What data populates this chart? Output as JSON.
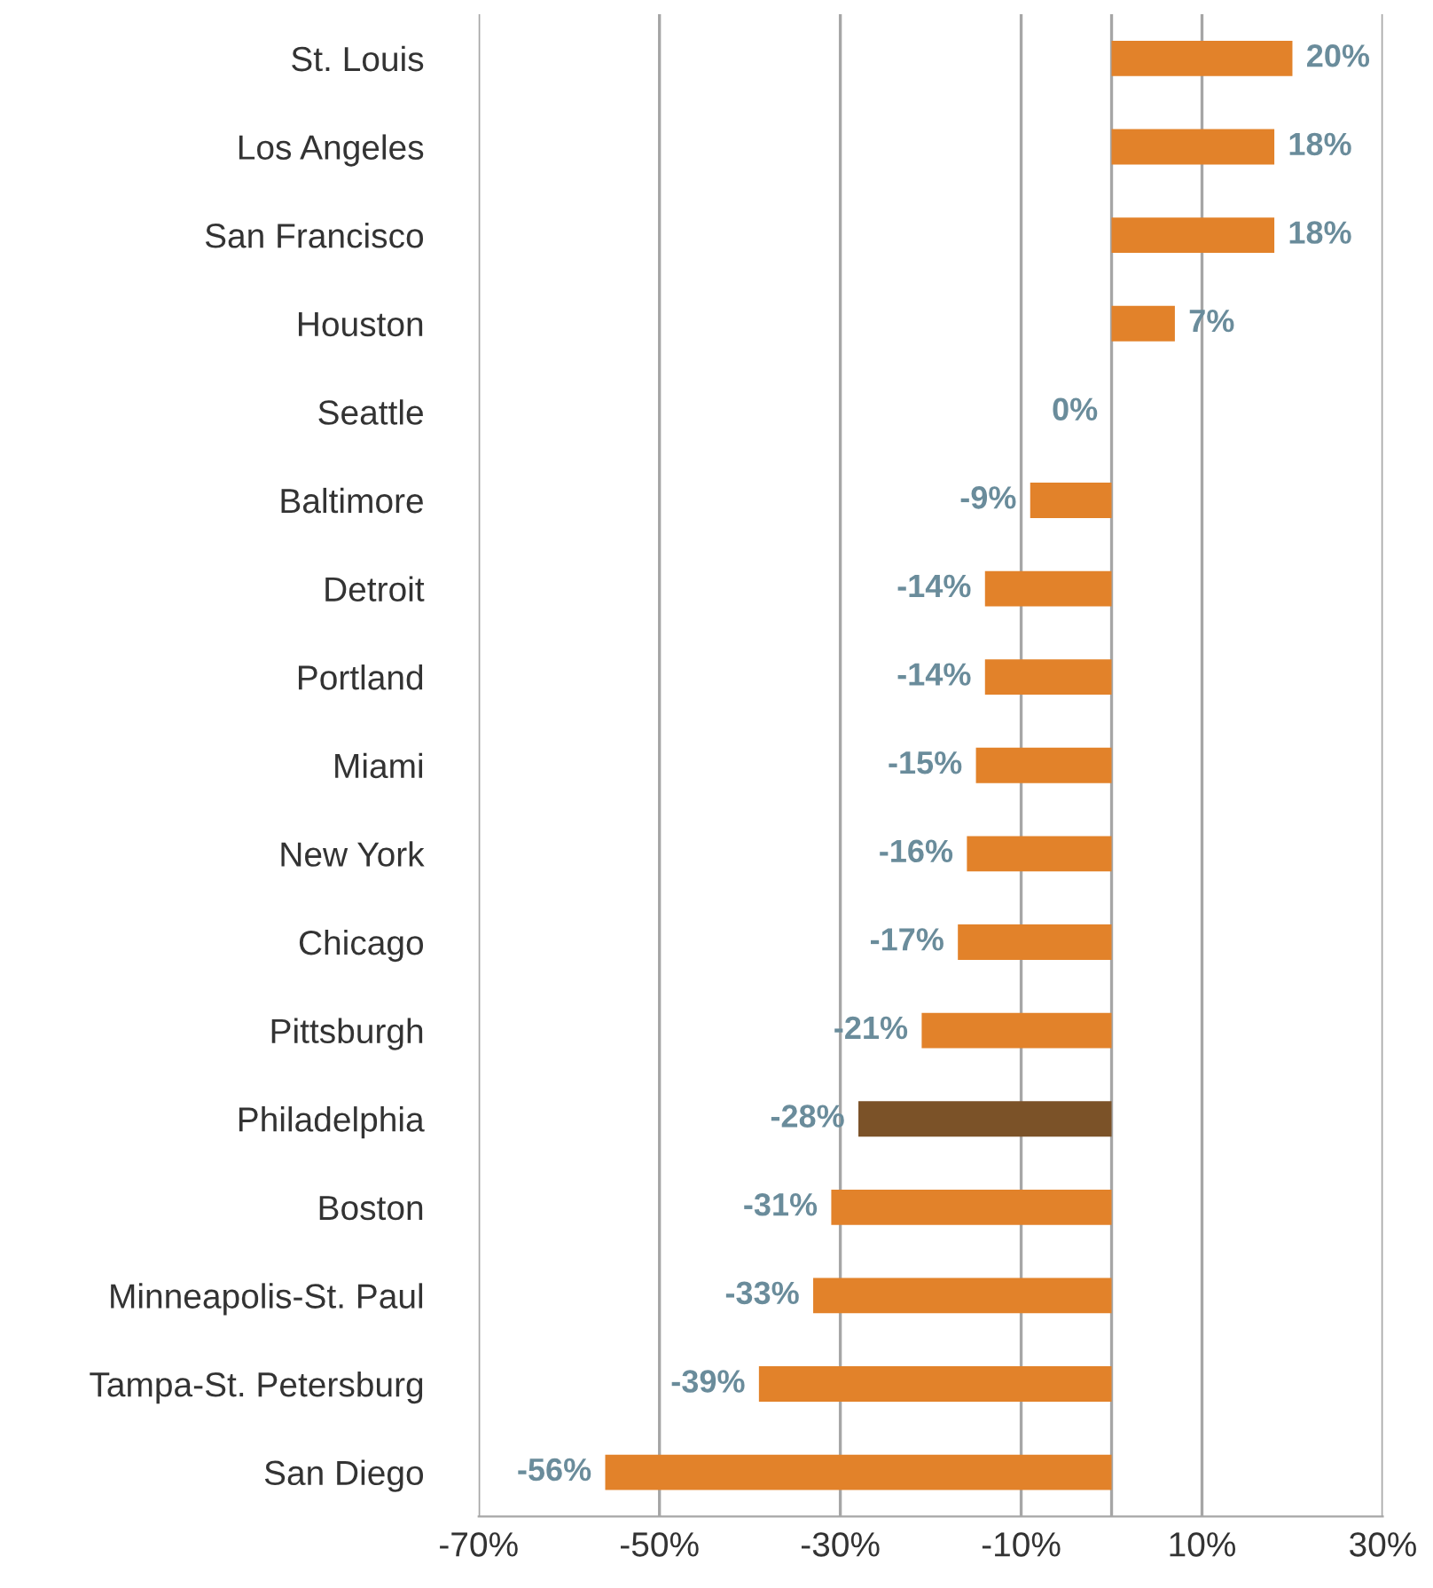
{
  "chart_data": {
    "type": "bar",
    "orientation": "horizontal",
    "categories": [
      "St. Louis",
      "Los Angeles",
      "San Francisco",
      "Houston",
      "Seattle",
      "Baltimore",
      "Detroit",
      "Portland",
      "Miami",
      "New York",
      "Chicago",
      "Pittsburgh",
      "Philadelphia",
      "Boston",
      "Minneapolis-St. Paul",
      "Tampa-St. Petersburg",
      "San Diego"
    ],
    "values": [
      20,
      18,
      18,
      7,
      0,
      -9,
      -14,
      -14,
      -15,
      -16,
      -17,
      -21,
      -28,
      -31,
      -33,
      -39,
      -56
    ],
    "value_labels": [
      "20%",
      "18%",
      "18%",
      "7%",
      "0%",
      "-9%",
      "-14%",
      "-14%",
      "-15%",
      "-16%",
      "-17%",
      "-21%",
      "-28%",
      "-31%",
      "-33%",
      "-39%",
      "-56%"
    ],
    "colors": [
      "#e2822a",
      "#e2822a",
      "#e2822a",
      "#e2822a",
      "#e2822a",
      "#e2822a",
      "#e2822a",
      "#e2822a",
      "#e2822a",
      "#e2822a",
      "#e2822a",
      "#e2822a",
      "#7b5228",
      "#e2822a",
      "#e2822a",
      "#e2822a",
      "#e2822a"
    ],
    "xlim": [
      -70,
      30
    ],
    "xticks": [
      {
        "value": -70,
        "label": "-70%"
      },
      {
        "value": -50,
        "label": "-50%"
      },
      {
        "value": -30,
        "label": "-30%"
      },
      {
        "value": -10,
        "label": "-10%"
      },
      {
        "value": 10,
        "label": "10%"
      },
      {
        "value": 30,
        "label": "30%"
      }
    ],
    "grid": "x",
    "legend": false
  }
}
